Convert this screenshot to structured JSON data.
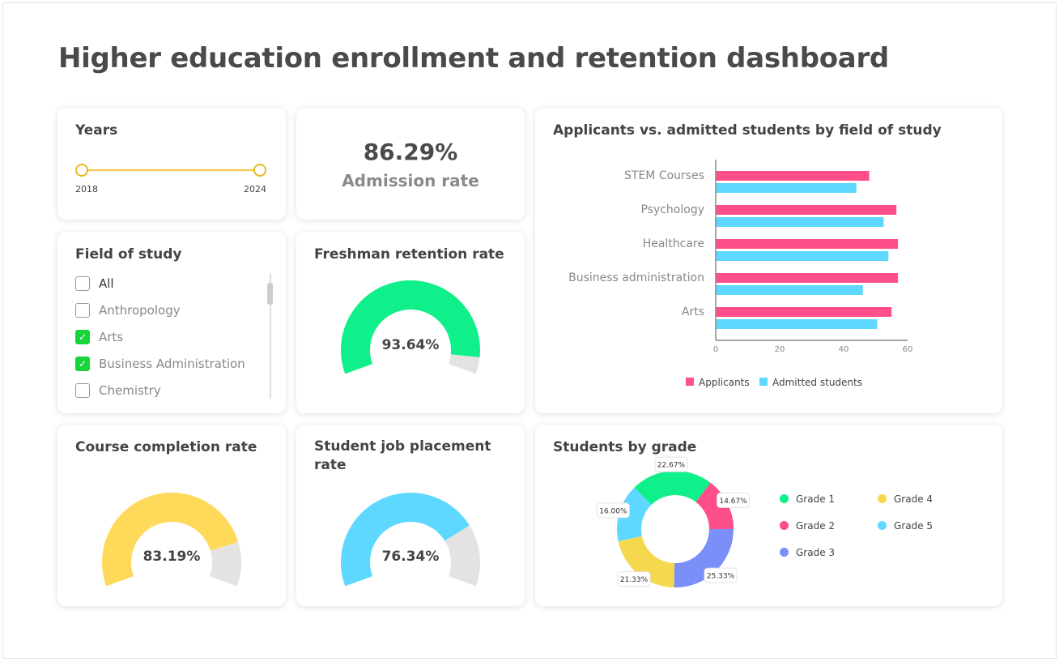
{
  "title": "Higher education enrollment and retention dashboard",
  "years": {
    "title": "Years",
    "start": "2018",
    "end": "2024",
    "color": "#f5c842"
  },
  "admission": {
    "value": "86.29%",
    "label": "Admission rate"
  },
  "field": {
    "title": "Field of study",
    "items": [
      {
        "label": "All",
        "checked": false
      },
      {
        "label": "Anthropology",
        "checked": false
      },
      {
        "label": "Arts",
        "checked": true
      },
      {
        "label": "Business Administration",
        "checked": true
      },
      {
        "label": "Chemistry",
        "checked": false
      }
    ]
  },
  "freshman": {
    "title": "Freshman retention rate",
    "value": 93.64,
    "label": "93.64%",
    "color": "#10f08a"
  },
  "completion": {
    "title": "Course completion rate",
    "value": 83.19,
    "label": "83.19%",
    "color": "#ffd95a"
  },
  "placement": {
    "title": "Student job placement rate",
    "value": 76.34,
    "label": "76.34%",
    "color": "#5fd8ff"
  },
  "gauge_track": "#e5e2e2",
  "chart_data": [
    {
      "type": "bar",
      "orientation": "horizontal",
      "title": "Applicants vs. admitted students by field of study",
      "categories": [
        "STEM Courses",
        "Psychology",
        "Healthcare",
        "Business administration",
        "Arts"
      ],
      "series": [
        {
          "name": "Applicants",
          "color": "#ff4f8b",
          "values": [
            48,
            56.5,
            57,
            57,
            55
          ]
        },
        {
          "name": "Admitted students",
          "color": "#5fd8ff",
          "values": [
            44,
            52.5,
            54,
            46,
            50.5
          ]
        }
      ],
      "xlim": [
        0,
        60
      ],
      "xticks": [
        0,
        20,
        40,
        60
      ],
      "legend": "bottom"
    },
    {
      "type": "pie",
      "donut": true,
      "title": "Students by grade",
      "slices": [
        {
          "name": "Grade 3",
          "value": 25.33,
          "label": "25.33%",
          "color": "#7b8ff8"
        },
        {
          "name": "Grade 4",
          "value": 21.33,
          "label": "21.33%",
          "color": "#f5d84e"
        },
        {
          "name": "Grade 5",
          "value": 16.0,
          "label": "16.00%",
          "color": "#5fd8ff"
        },
        {
          "name": "Grade 1",
          "value": 22.67,
          "label": "22.67%",
          "color": "#10f08a"
        },
        {
          "name": "Grade 2",
          "value": 14.67,
          "label": "14.67%",
          "color": "#ff4f8b"
        }
      ],
      "legend": [
        "Grade 1",
        "Grade 4",
        "Grade 2",
        "Grade 5",
        "Grade 3"
      ],
      "legend_placement": "right"
    }
  ]
}
